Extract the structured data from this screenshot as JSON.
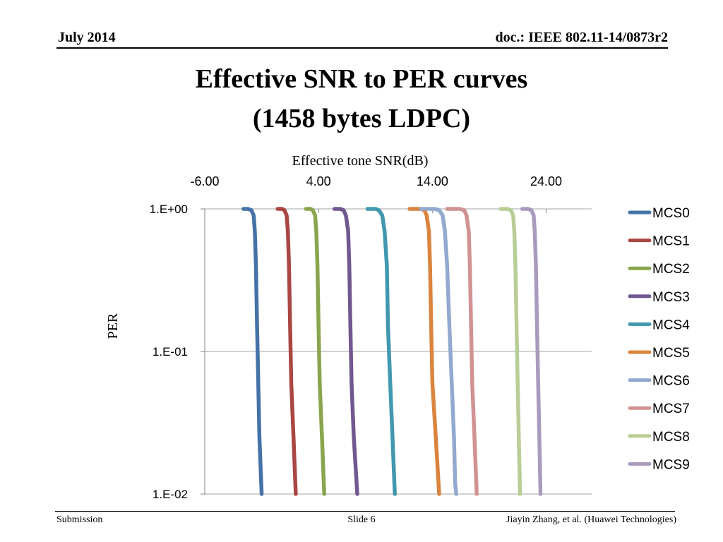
{
  "header": {
    "date": "July 2014",
    "doc": "doc.: IEEE 802.11-14/0873r2"
  },
  "slide_title": {
    "line1": "Effective SNR to PER curves",
    "line2": "(1458 bytes LDPC)"
  },
  "footer": {
    "left": "Submission",
    "center": "Slide 6",
    "right": "Jiayin Zhang, et al. (Huawei Technologies)"
  },
  "chart_data": {
    "type": "line",
    "title": "",
    "xlabel": "Effective tone SNR(dB)",
    "ylabel": "PER",
    "x_axis_position": "top",
    "xlim": [
      -6.0,
      28.0
    ],
    "x_ticks": [
      -6.0,
      4.0,
      14.0,
      24.0
    ],
    "x_tick_labels": [
      "-6.00",
      "4.00",
      "14.00",
      "24.00"
    ],
    "y_scale": "log",
    "ylim": [
      0.01,
      1.0
    ],
    "y_ticks": [
      1.0,
      0.1,
      0.01
    ],
    "y_tick_labels": [
      "1.E+00",
      "1.E-01",
      "1.E-02"
    ],
    "grid": true,
    "legend_position": "right",
    "series": [
      {
        "name": "MCS0",
        "color": "#4572A7",
        "x": [
          -2.6,
          -2.2,
          -1.9,
          -1.7,
          -1.6,
          -1.5,
          -1.4,
          -1.3,
          -1.2,
          -1.0
        ],
        "y": [
          1.0,
          1.0,
          0.98,
          0.9,
          0.7,
          0.4,
          0.15,
          0.06,
          0.025,
          0.01
        ]
      },
      {
        "name": "MCS1",
        "color": "#AA4643",
        "x": [
          0.4,
          0.8,
          1.0,
          1.2,
          1.3,
          1.4,
          1.5,
          1.6,
          1.8,
          2.0
        ],
        "y": [
          1.0,
          1.0,
          0.98,
          0.9,
          0.7,
          0.4,
          0.15,
          0.06,
          0.025,
          0.01
        ]
      },
      {
        "name": "MCS2",
        "color": "#89A54E",
        "x": [
          2.9,
          3.3,
          3.5,
          3.7,
          3.8,
          3.9,
          4.0,
          4.1,
          4.3,
          4.5
        ],
        "y": [
          1.0,
          1.0,
          0.98,
          0.9,
          0.7,
          0.4,
          0.15,
          0.06,
          0.025,
          0.01
        ]
      },
      {
        "name": "MCS3",
        "color": "#71588F",
        "x": [
          5.4,
          5.9,
          6.2,
          6.4,
          6.6,
          6.7,
          6.8,
          6.9,
          7.1,
          7.4
        ],
        "y": [
          1.0,
          1.0,
          0.98,
          0.9,
          0.7,
          0.4,
          0.15,
          0.06,
          0.025,
          0.01
        ]
      },
      {
        "name": "MCS4",
        "color": "#4198AF",
        "x": [
          8.3,
          9.0,
          9.3,
          9.6,
          9.8,
          10.0,
          10.1,
          10.3,
          10.5,
          10.7
        ],
        "y": [
          1.0,
          1.0,
          0.98,
          0.9,
          0.7,
          0.4,
          0.15,
          0.06,
          0.025,
          0.01
        ]
      },
      {
        "name": "MCS5",
        "color": "#DB843D",
        "x": [
          12.0,
          13.0,
          13.3,
          13.5,
          13.7,
          13.8,
          13.9,
          14.0,
          14.3,
          14.6
        ],
        "y": [
          1.0,
          1.0,
          0.98,
          0.9,
          0.7,
          0.4,
          0.15,
          0.06,
          0.025,
          0.01
        ]
      },
      {
        "name": "MCS6",
        "color": "#93A9CF",
        "x": [
          13.0,
          14.2,
          14.6,
          14.9,
          15.1,
          15.3,
          15.5,
          15.7,
          15.9,
          16.0,
          16.1
        ],
        "y": [
          1.0,
          1.0,
          0.98,
          0.9,
          0.7,
          0.4,
          0.15,
          0.06,
          0.025,
          0.012,
          0.01
        ]
      },
      {
        "name": "MCS7",
        "color": "#D19392",
        "x": [
          15.3,
          16.4,
          16.8,
          17.0,
          17.2,
          17.3,
          17.4,
          17.5,
          17.7,
          17.9
        ],
        "y": [
          1.0,
          1.0,
          0.98,
          0.9,
          0.7,
          0.4,
          0.15,
          0.06,
          0.025,
          0.01
        ]
      },
      {
        "name": "MCS8",
        "color": "#B9CD96",
        "x": [
          20.0,
          20.6,
          20.9,
          21.1,
          21.2,
          21.3,
          21.4,
          21.5,
          21.6,
          21.7
        ],
        "y": [
          1.0,
          1.0,
          0.98,
          0.9,
          0.7,
          0.4,
          0.15,
          0.06,
          0.025,
          0.01
        ]
      },
      {
        "name": "MCS9",
        "color": "#A99BBD",
        "x": [
          21.9,
          22.4,
          22.7,
          22.9,
          23.0,
          23.1,
          23.2,
          23.3,
          23.4,
          23.5
        ],
        "y": [
          1.0,
          1.0,
          0.98,
          0.9,
          0.7,
          0.4,
          0.15,
          0.06,
          0.025,
          0.01
        ]
      }
    ]
  }
}
